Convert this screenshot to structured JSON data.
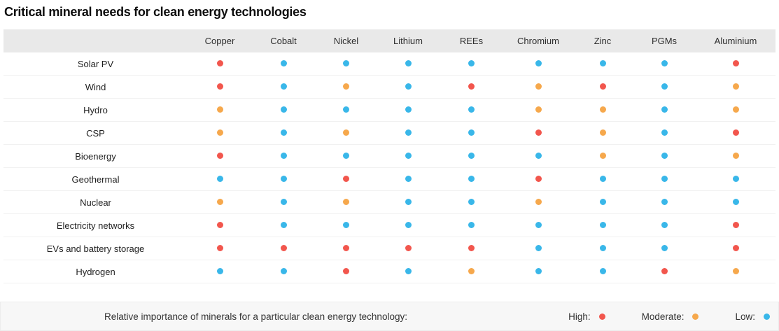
{
  "title": "Critical mineral needs for clean energy technologies",
  "colors": {
    "high": "#f2564d",
    "moderate": "#f6a84c",
    "low": "#39b7e9",
    "header_bg": "#e9e9e9",
    "legend_bg": "#f7f7f7"
  },
  "chart_data": {
    "type": "heatmap",
    "title": "Critical mineral needs for clean energy technologies",
    "categories": [
      "Copper",
      "Cobalt",
      "Nickel",
      "Lithium",
      "REEs",
      "Chromium",
      "Zinc",
      "PGMs",
      "Aluminium"
    ],
    "rows": [
      {
        "label": "Solar PV",
        "values": [
          "high",
          "low",
          "low",
          "low",
          "low",
          "low",
          "low",
          "low",
          "high"
        ]
      },
      {
        "label": "Wind",
        "values": [
          "high",
          "low",
          "moderate",
          "low",
          "high",
          "moderate",
          "high",
          "low",
          "moderate"
        ]
      },
      {
        "label": "Hydro",
        "values": [
          "moderate",
          "low",
          "low",
          "low",
          "low",
          "moderate",
          "moderate",
          "low",
          "moderate"
        ]
      },
      {
        "label": "CSP",
        "values": [
          "moderate",
          "low",
          "moderate",
          "low",
          "low",
          "high",
          "moderate",
          "low",
          "high"
        ]
      },
      {
        "label": "Bioenergy",
        "values": [
          "high",
          "low",
          "low",
          "low",
          "low",
          "low",
          "moderate",
          "low",
          "moderate"
        ]
      },
      {
        "label": "Geothermal",
        "values": [
          "low",
          "low",
          "high",
          "low",
          "low",
          "high",
          "low",
          "low",
          "low"
        ]
      },
      {
        "label": "Nuclear",
        "values": [
          "moderate",
          "low",
          "moderate",
          "low",
          "low",
          "moderate",
          "low",
          "low",
          "low"
        ]
      },
      {
        "label": "Electricity networks",
        "values": [
          "high",
          "low",
          "low",
          "low",
          "low",
          "low",
          "low",
          "low",
          "high"
        ]
      },
      {
        "label": "EVs and battery storage",
        "values": [
          "high",
          "high",
          "high",
          "high",
          "high",
          "low",
          "low",
          "low",
          "high"
        ]
      },
      {
        "label": "Hydrogen",
        "values": [
          "low",
          "low",
          "high",
          "low",
          "moderate",
          "low",
          "low",
          "high",
          "moderate"
        ]
      }
    ],
    "value_scale": [
      "high",
      "moderate",
      "low"
    ],
    "legend_position": "bottom",
    "grid": "horizontal-row-separators"
  },
  "legend": {
    "label": "Relative importance of minerals for a particular clean energy technology:",
    "items": [
      {
        "label": "High:",
        "level": "high",
        "color": "#f2564d"
      },
      {
        "label": "Moderate:",
        "level": "moderate",
        "color": "#f6a84c"
      },
      {
        "label": "Low:",
        "level": "low",
        "color": "#39b7e9"
      }
    ]
  }
}
